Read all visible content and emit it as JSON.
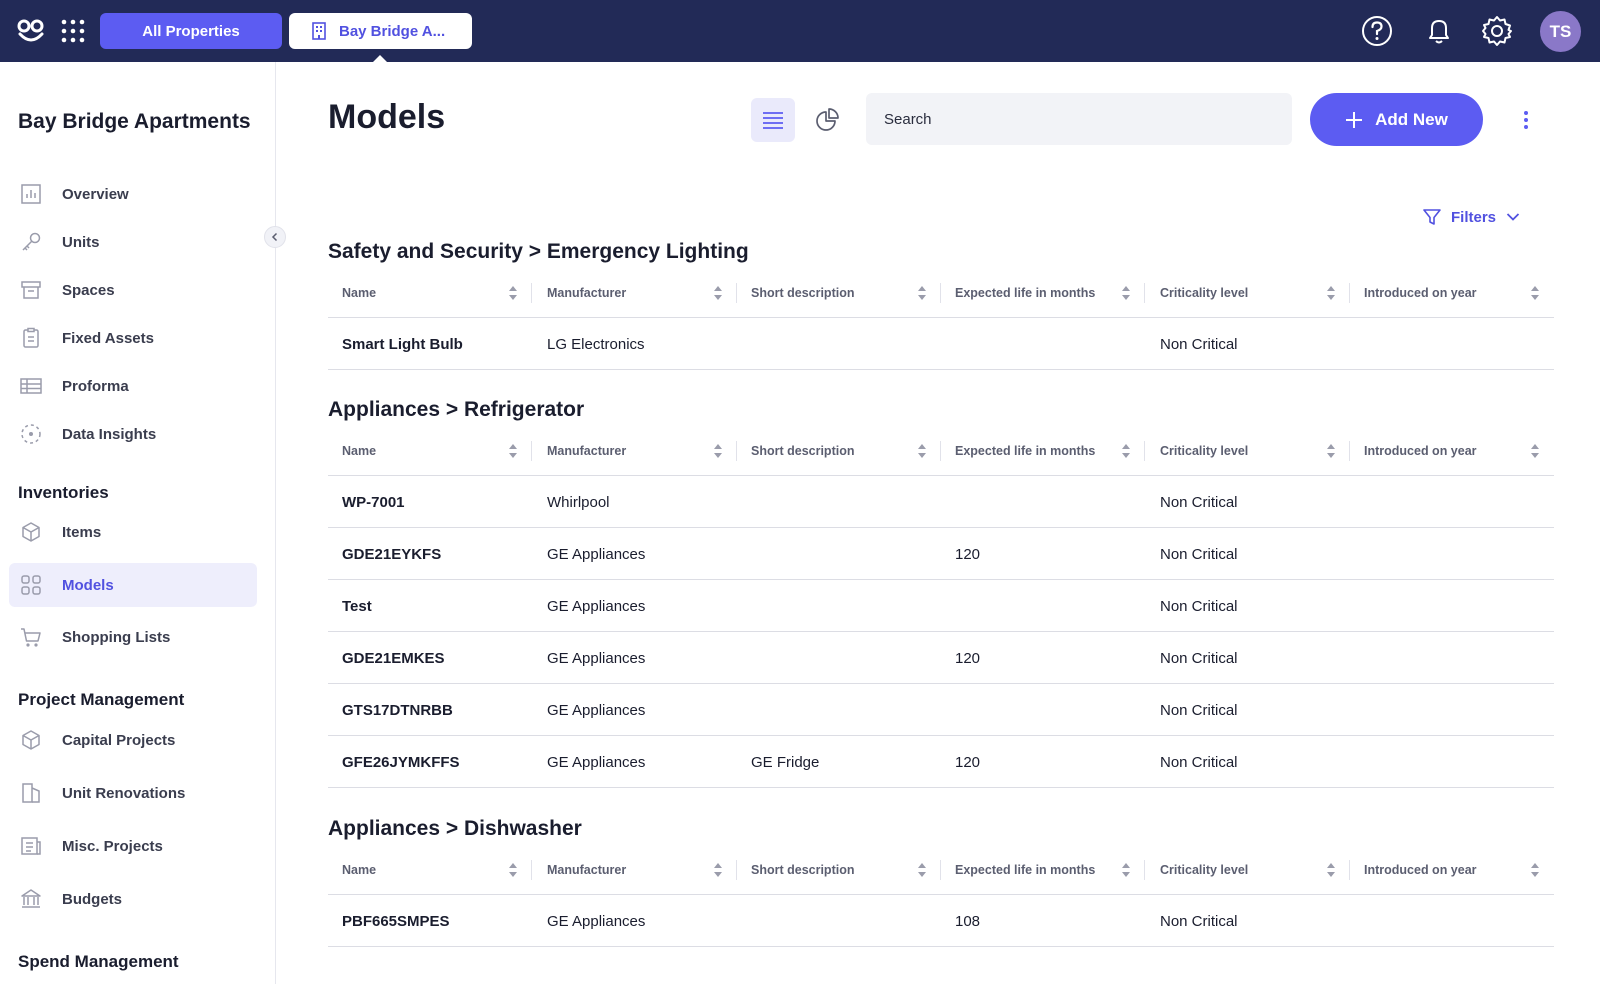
{
  "topbar": {
    "tab_all": "All Properties",
    "tab_property": "Bay Bridge A...",
    "avatar_initials": "TS"
  },
  "sidebar": {
    "property_title": "Bay Bridge Apartments",
    "items": [
      {
        "label": "Overview",
        "icon": "bar-chart-icon"
      },
      {
        "label": "Units",
        "icon": "key-icon"
      },
      {
        "label": "Spaces",
        "icon": "archive-box-icon"
      },
      {
        "label": "Fixed Assets",
        "icon": "clipboard-icon"
      },
      {
        "label": "Proforma",
        "icon": "table-icon"
      },
      {
        "label": "Data Insights",
        "icon": "insights-icon"
      }
    ],
    "inventories": {
      "title": "Inventories",
      "items": [
        {
          "label": "Items",
          "icon": "cube-icon"
        },
        {
          "label": "Models",
          "icon": "grid-icon",
          "active": true
        },
        {
          "label": "Shopping Lists",
          "icon": "cart-icon"
        }
      ]
    },
    "project_management": {
      "title": "Project Management",
      "items": [
        {
          "label": "Capital Projects",
          "icon": "cube-icon"
        },
        {
          "label": "Unit Renovations",
          "icon": "renovation-icon"
        },
        {
          "label": "Misc. Projects",
          "icon": "misc-project-icon"
        },
        {
          "label": "Budgets",
          "icon": "bank-icon"
        }
      ]
    },
    "spend_management": {
      "title": "Spend Management"
    }
  },
  "main": {
    "title": "Models",
    "search_placeholder": "Search",
    "add_new_label": "Add New",
    "filters_label": "Filters",
    "columns": [
      "Name",
      "Manufacturer",
      "Short description",
      "Expected life in months",
      "Criticality level",
      "Introduced on year"
    ],
    "groups": [
      {
        "title": "Safety and Security > Emergency Lighting",
        "rows": [
          {
            "name": "Smart Light Bulb",
            "manufacturer": "LG Electronics",
            "description": "",
            "life": "",
            "criticality": "Non Critical",
            "year": ""
          }
        ]
      },
      {
        "title": "Appliances > Refrigerator",
        "rows": [
          {
            "name": "WP-7001",
            "manufacturer": "Whirlpool",
            "description": "",
            "life": "",
            "criticality": "Non Critical",
            "year": ""
          },
          {
            "name": "GDE21EYKFS",
            "manufacturer": "GE Appliances",
            "description": "",
            "life": "120",
            "criticality": "Non Critical",
            "year": ""
          },
          {
            "name": "Test",
            "manufacturer": "GE Appliances",
            "description": "",
            "life": "",
            "criticality": "Non Critical",
            "year": ""
          },
          {
            "name": "GDE21EMKES",
            "manufacturer": "GE Appliances",
            "description": "",
            "life": "120",
            "criticality": "Non Critical",
            "year": ""
          },
          {
            "name": "GTS17DTNRBB",
            "manufacturer": "GE Appliances",
            "description": "",
            "life": "",
            "criticality": "Non Critical",
            "year": ""
          },
          {
            "name": "GFE26JYMKFFS",
            "manufacturer": "GE Appliances",
            "description": "GE Fridge",
            "life": "120",
            "criticality": "Non Critical",
            "year": ""
          }
        ]
      },
      {
        "title": "Appliances > Dishwasher",
        "rows": [
          {
            "name": "PBF665SMPES",
            "manufacturer": "GE Appliances",
            "description": "",
            "life": "108",
            "criticality": "Non Critical",
            "year": ""
          }
        ]
      }
    ]
  },
  "colors": {
    "navy": "#222a57",
    "accent": "#5c5cf2"
  }
}
